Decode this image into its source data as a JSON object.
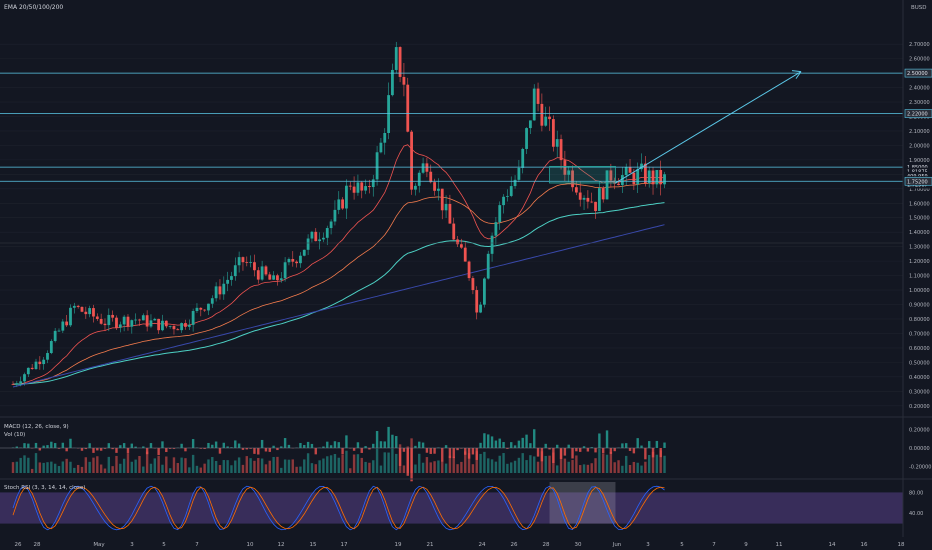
{
  "header": {
    "indicator": "EMA 20/50/100/200"
  },
  "currency": "BUSD",
  "price_axis_labels": [
    "2.70000",
    "2.60000",
    "2.50000",
    "2.40000",
    "2.30000",
    "2.20000",
    "2.10000",
    "2.00000",
    "1.90000",
    "1.80000",
    "1.70000",
    "1.60000",
    "1.50000",
    "1.40000",
    "1.30000",
    "1.20000",
    "1.10000",
    "1.00000",
    "0.90000",
    "0.80000",
    "0.70000",
    "0.60000",
    "0.50000",
    "0.40000",
    "0.30000",
    "0.20000"
  ],
  "price_tags": [
    {
      "text": "2.50000",
      "price": 2.5
    },
    {
      "text": "2.22000",
      "price": 2.22
    },
    {
      "text": "1.85000",
      "price": 1.85
    },
    {
      "text": "1.81875",
      "price": 1.81875
    },
    {
      "text": "409.959",
      "price": 1.79
    },
    {
      "text": "02:58",
      "price": 1.76
    },
    {
      "text": "1.72967",
      "price": 1.72967
    },
    {
      "text": "1.75200",
      "price": 1.752
    }
  ],
  "macd_panel": {
    "title": "MACD (12, 26, close, 9)",
    "vol_title": "Vol (10)",
    "axis_labels": [
      "0.20000",
      "0.00000",
      "-0.20000"
    ]
  },
  "stoch_panel": {
    "title": "Stoch RSI (3, 3, 14, 14, close)",
    "axis_labels": [
      "80.00",
      "40.00"
    ]
  },
  "time_labels": [
    "26",
    "28",
    "May",
    "3",
    "5",
    "7",
    "10",
    "12",
    "15",
    "17",
    "19",
    "21",
    "24",
    "26",
    "28",
    "30",
    "Jun",
    "3",
    "5",
    "7",
    "9",
    "11",
    "14",
    "16",
    "18"
  ],
  "colors": {
    "up": "#26a69a",
    "down": "#ef5350",
    "ema20": "#ef5350",
    "ema50": "#f57c4d",
    "ema100": "#4dd0c4",
    "ema200": "#3949ab",
    "hline": "#5bc8e8",
    "box": "#26a69a"
  },
  "chart_data": {
    "type": "candlestick",
    "title": "",
    "x_range_dates": [
      "Apr 25",
      "Jun 18"
    ],
    "y_range": [
      0.15,
      2.95
    ],
    "horizontal_levels": [
      2.5,
      2.22,
      1.85,
      1.752
    ],
    "consolidation_box": {
      "from": "May 31",
      "to": "Jun 3",
      "low": 1.74,
      "high": 1.855
    },
    "projection_arrow": {
      "from": {
        "date": "Jun 3",
        "price": 1.74
      },
      "to": {
        "date": "Jun 12",
        "price": 2.51
      }
    },
    "price_path_keypoints": [
      {
        "day": 0,
        "price": 0.35
      },
      {
        "day": 2,
        "price": 0.55
      },
      {
        "day": 4,
        "price": 0.88
      },
      {
        "day": 6,
        "price": 0.78
      },
      {
        "day": 8,
        "price": 0.8
      },
      {
        "day": 10,
        "price": 0.75
      },
      {
        "day": 11,
        "price": 0.76
      },
      {
        "day": 13,
        "price": 0.95
      },
      {
        "day": 15,
        "price": 1.2
      },
      {
        "day": 17,
        "price": 1.05
      },
      {
        "day": 19,
        "price": 1.3
      },
      {
        "day": 21,
        "price": 1.5
      },
      {
        "day": 22,
        "price": 1.75
      },
      {
        "day": 23,
        "price": 1.65
      },
      {
        "day": 24,
        "price": 2.0
      },
      {
        "day": 25,
        "price": 2.6
      },
      {
        "day": 25.5,
        "price": 2.45
      },
      {
        "day": 26,
        "price": 1.7
      },
      {
        "day": 27,
        "price": 1.9
      },
      {
        "day": 28,
        "price": 1.6
      },
      {
        "day": 29,
        "price": 1.3
      },
      {
        "day": 30,
        "price": 1.05
      },
      {
        "day": 30.3,
        "price": 0.8
      },
      {
        "day": 31,
        "price": 1.3
      },
      {
        "day": 32,
        "price": 1.65
      },
      {
        "day": 33,
        "price": 1.8
      },
      {
        "day": 34,
        "price": 2.35
      },
      {
        "day": 35,
        "price": 2.1
      },
      {
        "day": 36,
        "price": 1.85
      },
      {
        "day": 37,
        "price": 1.7
      },
      {
        "day": 38,
        "price": 1.6
      },
      {
        "day": 39,
        "price": 1.8
      },
      {
        "day": 40,
        "price": 1.78
      },
      {
        "day": 41,
        "price": 1.8
      },
      {
        "day": 42,
        "price": 1.76
      }
    ],
    "macd_range": [
      -0.3,
      0.3
    ],
    "stoch_range": [
      0,
      100
    ]
  }
}
